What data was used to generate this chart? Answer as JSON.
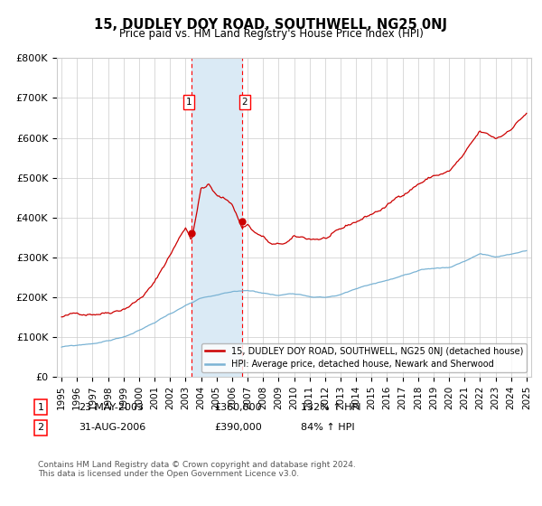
{
  "title": "15, DUDLEY DOY ROAD, SOUTHWELL, NG25 0NJ",
  "subtitle": "Price paid vs. HM Land Registry's House Price Index (HPI)",
  "legend_line1": "15, DUDLEY DOY ROAD, SOUTHWELL, NG25 0NJ (detached house)",
  "legend_line2": "HPI: Average price, detached house, Newark and Sherwood",
  "transaction1_date": "23-MAY-2003",
  "transaction1_price": 360000,
  "transaction1_hpi": "132% ↑ HPI",
  "transaction2_date": "31-AUG-2006",
  "transaction2_price": 390000,
  "transaction2_hpi": "84% ↑ HPI",
  "footnote": "Contains HM Land Registry data © Crown copyright and database right 2024.\nThis data is licensed under the Open Government Licence v3.0.",
  "hpi_color": "#7ab3d4",
  "price_color": "#cc0000",
  "shade_color": "#daeaf5",
  "ylim": [
    0,
    800000
  ],
  "yticks": [
    0,
    100000,
    200000,
    300000,
    400000,
    500000,
    600000,
    700000,
    800000
  ],
  "ytick_labels": [
    "£0",
    "£100K",
    "£200K",
    "£300K",
    "£400K",
    "£500K",
    "£600K",
    "£700K",
    "£800K"
  ],
  "transaction1_x": 2003.38,
  "transaction2_x": 2006.66,
  "xmin": 1994.7,
  "xmax": 2025.3
}
